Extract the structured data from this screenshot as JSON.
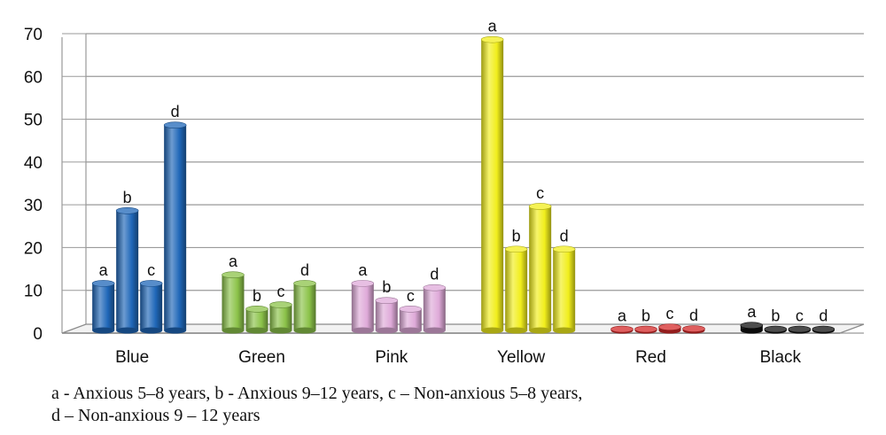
{
  "chart_data": {
    "type": "bar",
    "categories": [
      "Blue",
      "Green",
      "Pink",
      "Yellow",
      "Red",
      "Black"
    ],
    "bar_labels": [
      "a",
      "b",
      "c",
      "d"
    ],
    "series": [
      {
        "values": [
          11,
          13,
          11,
          68,
          0.3,
          1.2
        ]
      },
      {
        "values": [
          28,
          5,
          7,
          19,
          0.3,
          0.3
        ]
      },
      {
        "values": [
          11,
          6,
          5,
          29,
          0.8,
          0.3
        ]
      },
      {
        "values": [
          48,
          11,
          10,
          19,
          0.4,
          0.3
        ]
      }
    ],
    "yticks": [
      0,
      10,
      20,
      30,
      40,
      50,
      60,
      70
    ],
    "ylim": [
      0,
      70
    ],
    "grid": true,
    "colors": {
      "Blue": "#1f67b8",
      "Green": "#8cc34a",
      "Pink": "#dfaad9",
      "Yellow": "#f1ee1c",
      "Red": "#d42a2a",
      "Black": "#111111"
    }
  },
  "legend": {
    "line1": "a - Anxious 5–8 years, b - Anxious 9–12 years, c – Non-anxious 5–8 years,",
    "line2": "d – Non-anxious 9 – 12 years"
  }
}
